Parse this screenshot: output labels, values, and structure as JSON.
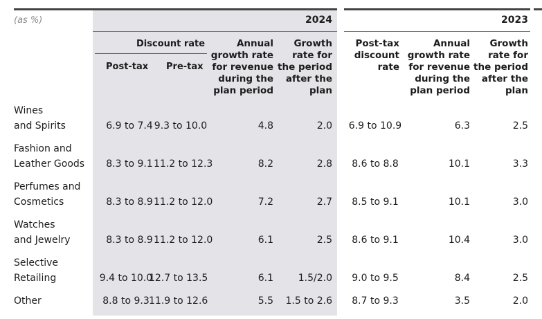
{
  "unit_note": "(as %)",
  "years": {
    "current": "2024",
    "previous": "2023"
  },
  "headers": {
    "discount_rate": "Discount rate",
    "post_tax": "Post-tax",
    "pre_tax": "Pre-tax",
    "annual_growth": [
      "Annual",
      "growth rate",
      "for revenue",
      "during the",
      "plan period"
    ],
    "growth_after": [
      "Growth",
      "rate for",
      "the period",
      "after the",
      "plan"
    ],
    "post_tax_discount": [
      "Post-tax",
      "discount",
      "rate"
    ],
    "annual_growth_2023": [
      "Annual",
      "growth rate",
      "for revenue",
      "during the",
      "plan period"
    ],
    "growth_after_2023": [
      "Growth",
      "rate for",
      "the period",
      "after the",
      "plan"
    ]
  },
  "rows": [
    {
      "label": [
        "Wines",
        "and Spirits"
      ],
      "post_tax": "6.9 to 7.4",
      "pre_tax": "9.3 to 10.0",
      "annual": "4.8",
      "after": "2.0",
      "post_tax_2023": "6.9 to 10.9",
      "annual_2023": "6.3",
      "after_2023": "2.5"
    },
    {
      "label": [
        "Fashion and",
        "Leather Goods"
      ],
      "post_tax": "8.3 to 9.1",
      "pre_tax": "11.2 to 12.3",
      "annual": "8.2",
      "after": "2.8",
      "post_tax_2023": "8.6 to 8.8",
      "annual_2023": "10.1",
      "after_2023": "3.3"
    },
    {
      "label": [
        "Perfumes and",
        "Cosmetics"
      ],
      "post_tax": "8.3 to 8.9",
      "pre_tax": "11.2 to 12.0",
      "annual": "7.2",
      "after": "2.7",
      "post_tax_2023": "8.5 to 9.1",
      "annual_2023": "10.1",
      "after_2023": "3.0"
    },
    {
      "label": [
        "Watches",
        "and Jewelry"
      ],
      "post_tax": "8.3 to 8.9",
      "pre_tax": "11.2 to 12.0",
      "annual": "6.1",
      "after": "2.5",
      "post_tax_2023": "8.6 to 9.1",
      "annual_2023": "10.4",
      "after_2023": "3.0"
    },
    {
      "label": [
        "Selective",
        "Retailing"
      ],
      "post_tax": "9.4 to 10.0",
      "pre_tax": "12.7 to 13.5",
      "annual": "6.1",
      "after": "1.5/2.0",
      "post_tax_2023": "9.0 to 9.5",
      "annual_2023": "8.4",
      "after_2023": "2.5"
    },
    {
      "label": [
        "Other"
      ],
      "post_tax": "8.8 to 9.3",
      "pre_tax": "11.9 to 12.6",
      "annual": "5.5",
      "after": "1.5 to 2.6",
      "post_tax_2023": "8.7 to 9.3",
      "annual_2023": "3.5",
      "after_2023": "2.0"
    }
  ]
}
